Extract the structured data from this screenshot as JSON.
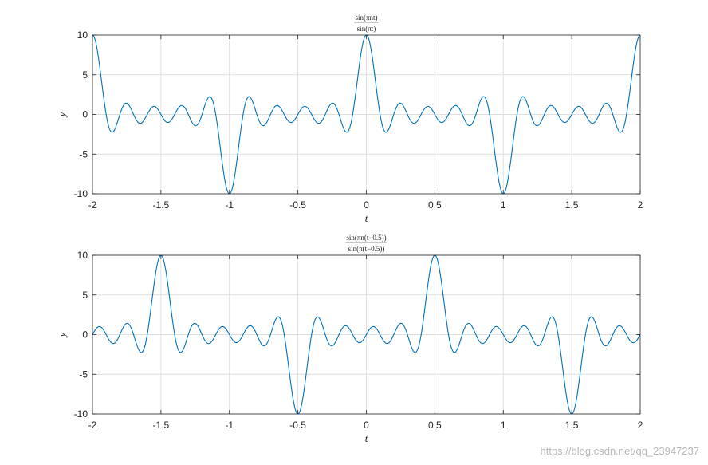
{
  "chart_data": [
    {
      "type": "line",
      "title_numerator": "sin(πnt)",
      "title_denominator": "sin(πt)",
      "xlabel": "t",
      "ylabel": "y",
      "xlim": [
        -2,
        2
      ],
      "ylim": [
        -10,
        10
      ],
      "xticks": [
        -2,
        -1.5,
        -1,
        -0.5,
        0,
        0.5,
        1,
        1.5,
        2
      ],
      "xtick_labels": [
        "-2",
        "-1.5",
        "-1",
        "-0.5",
        "0",
        "0.5",
        "1",
        "1.5",
        "2"
      ],
      "yticks": [
        10,
        5,
        0,
        -5,
        -10
      ],
      "ytick_labels": [
        "10",
        "5",
        "0",
        "-5",
        "-10"
      ],
      "grid": true,
      "series": [
        {
          "color": "#0072bd",
          "formula": "sin(10πt)/sin(πt)",
          "n": 10,
          "shift": 0,
          "x_range": [
            -2,
            2
          ],
          "samples": 2000
        }
      ]
    },
    {
      "type": "line",
      "title_numerator": "sin(πn(t−0.5))",
      "title_denominator": "sin(π(t−0.5))",
      "xlabel": "t",
      "ylabel": "y",
      "xlim": [
        -2,
        2
      ],
      "ylim": [
        -10,
        10
      ],
      "xticks": [
        -2,
        -1.5,
        -1,
        -0.5,
        0,
        0.5,
        1,
        1.5,
        2
      ],
      "xtick_labels": [
        "-2",
        "-1.5",
        "-1",
        "-0.5",
        "0",
        "0.5",
        "1",
        "1.5",
        "2"
      ],
      "yticks": [
        10,
        5,
        0,
        -5,
        -10
      ],
      "ytick_labels": [
        "10",
        "5",
        "0",
        "-5",
        "-10"
      ],
      "grid": true,
      "series": [
        {
          "color": "#0072bd",
          "formula": "sin(10π(t−0.5))/sin(π(t−0.5))",
          "n": 10,
          "shift": 0.5,
          "x_range": [
            -2,
            2
          ],
          "samples": 2000
        }
      ]
    }
  ],
  "watermark": "https://blog.csdn.net/qq_23947237"
}
